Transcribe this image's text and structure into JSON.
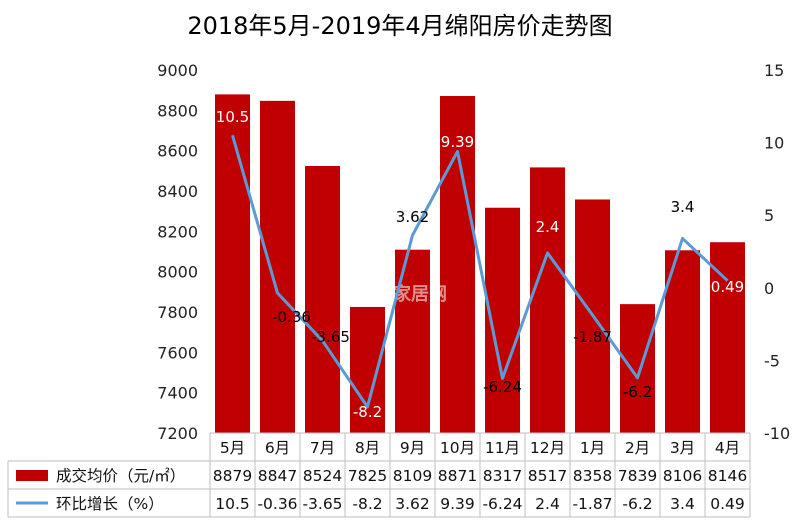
{
  "chart_data": {
    "type": "bar",
    "title": "2018年5月-2019年4月绵阳房价走势图",
    "categories": [
      "5月",
      "6月",
      "7月",
      "8月",
      "9月",
      "10月",
      "11月",
      "12月",
      "1月",
      "2月",
      "3月",
      "4月"
    ],
    "series": [
      {
        "name": "成交均价（元/㎡）",
        "type": "bar",
        "axis": "left",
        "color": "#c00000",
        "values": [
          8879,
          8847,
          8524,
          7825,
          8109,
          8871,
          8317,
          8517,
          8358,
          7839,
          8106,
          8146
        ]
      },
      {
        "name": "环比增长（%）",
        "type": "line",
        "axis": "right",
        "color": "#5b9bd5",
        "values": [
          10.5,
          -0.36,
          -3.65,
          -8.2,
          3.62,
          9.39,
          -6.24,
          2.4,
          -1.87,
          -6.2,
          3.4,
          0.49
        ]
      }
    ],
    "y_left": {
      "min": 7200,
      "max": 9000,
      "ticks": [
        "9000",
        "8800",
        "8600",
        "8400",
        "8200",
        "8000",
        "7800",
        "7600",
        "7400",
        "7200"
      ]
    },
    "y_right": {
      "min": -10,
      "max": 15,
      "ticks": [
        "15",
        "10",
        "5",
        "0",
        "-5",
        "-10"
      ]
    },
    "data_table": {
      "rows": [
        {
          "label": "成交均价（元/㎡）",
          "values": [
            "8879",
            "8847",
            "8524",
            "7825",
            "8109",
            "8871",
            "8317",
            "8517",
            "8358",
            "7839",
            "8106",
            "8146"
          ]
        },
        {
          "label": "环比增长（%）",
          "values": [
            "10.5",
            "-0.36",
            "-3.65",
            "-8.2",
            "3.62",
            "9.39",
            "-6.24",
            "2.4",
            "-1.87",
            "-6.2",
            "3.4",
            "0.49"
          ]
        }
      ]
    },
    "watermark": "家居网",
    "grid": false
  }
}
